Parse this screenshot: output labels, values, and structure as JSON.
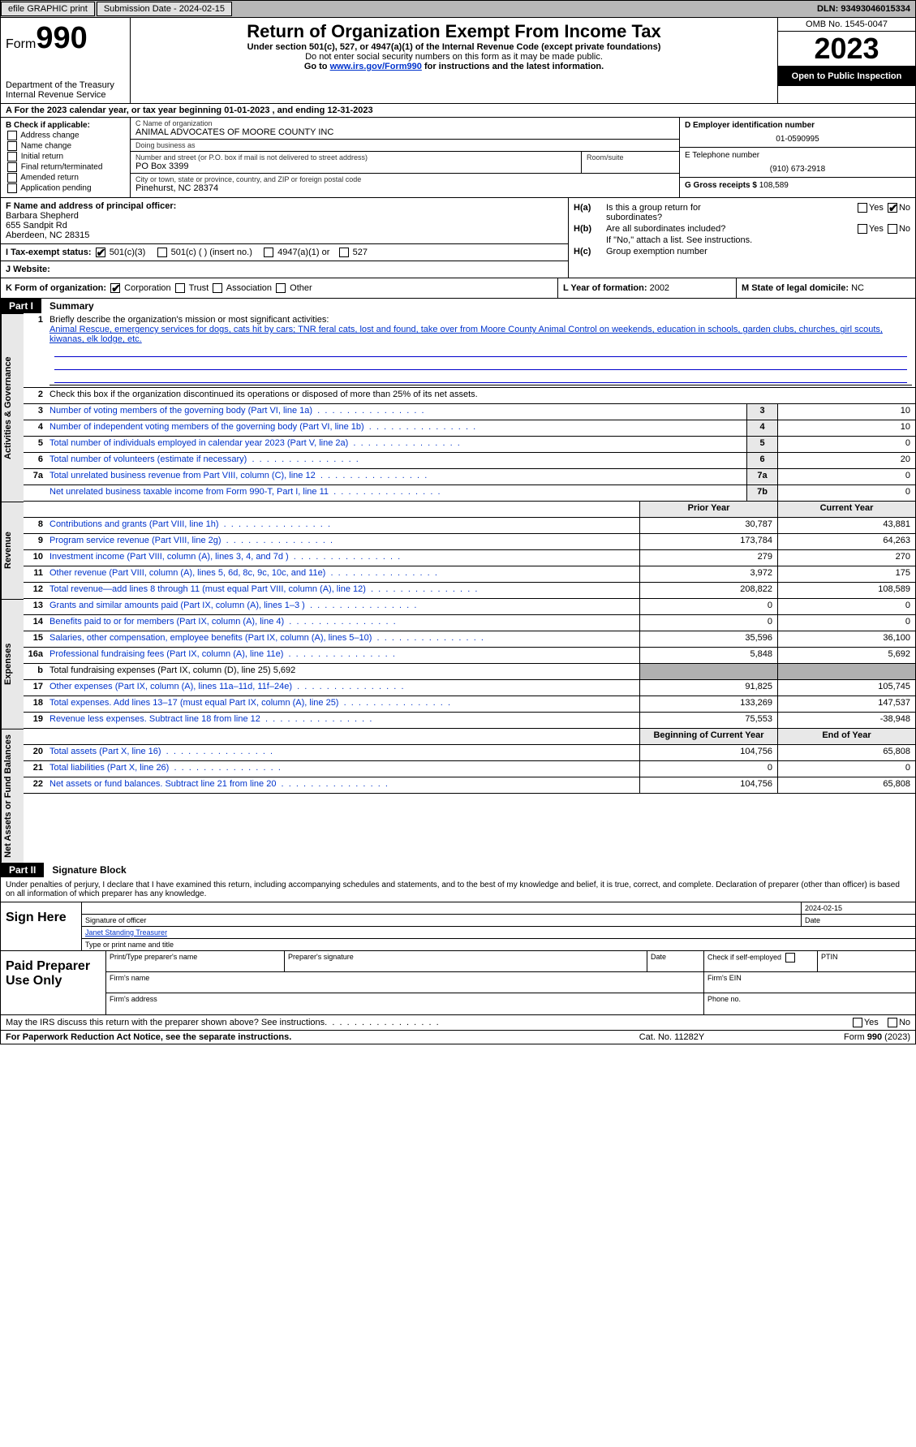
{
  "topbar": {
    "efile": "efile GRAPHIC print",
    "submission": "Submission Date - 2024-02-15",
    "dln": "DLN: 93493046015334"
  },
  "header": {
    "form_label": "Form",
    "form_num": "990",
    "dept1": "Department of the Treasury",
    "dept2": "Internal Revenue Service",
    "title": "Return of Organization Exempt From Income Tax",
    "sub": "Under section 501(c), 527, or 4947(a)(1) of the Internal Revenue Code (except private foundations)",
    "note": "Do not enter social security numbers on this form as it may be made public.",
    "goto_pre": "Go to ",
    "goto_link": "www.irs.gov/Form990",
    "goto_post": " for instructions and the latest information.",
    "omb": "OMB No. 1545-0047",
    "year": "2023",
    "open": "Open to Public Inspection"
  },
  "rowA": {
    "text": "A  For the 2023 calendar year, or tax year beginning 01-01-2023    , and ending 12-31-2023"
  },
  "boxB": {
    "label": "B Check if applicable:",
    "opts": [
      "Address change",
      "Name change",
      "Initial return",
      "Final return/terminated",
      "Amended return",
      "Application pending"
    ]
  },
  "boxC": {
    "name_lbl": "C Name of organization",
    "name": "ANIMAL ADVOCATES OF MOORE COUNTY INC",
    "dba_lbl": "Doing business as",
    "dba": "",
    "street_lbl": "Number and street (or P.O. box if mail is not delivered to street address)",
    "street": "PO Box 3399",
    "room_lbl": "Room/suite",
    "room": "",
    "city_lbl": "City or town, state or province, country, and ZIP or foreign postal code",
    "city": "Pinehurst, NC  28374"
  },
  "boxD": {
    "ein_lbl": "D Employer identification number",
    "ein": "01-0590995",
    "phone_lbl": "E Telephone number",
    "phone": "(910) 673-2918",
    "gross_lbl": "G Gross receipts $",
    "gross": "108,589"
  },
  "boxF": {
    "lbl": "F  Name and address of principal officer:",
    "name": "Barbara Shepherd",
    "addr1": "655 Sandpit Rd",
    "addr2": "Aberdeen, NC  28315"
  },
  "boxH": {
    "ha_lbl": "Is this a group return for",
    "ha_lbl2": "subordinates?",
    "hb_lbl": "Are all subordinates included?",
    "hb_note": "If \"No,\" attach a list. See instructions.",
    "hc_lbl": "Group exemption number",
    "yes": "Yes",
    "no": "No"
  },
  "boxI": {
    "lbl": "I   Tax-exempt status:",
    "o1": "501(c)(3)",
    "o2": "501(c) (  ) (insert no.)",
    "o3": "4947(a)(1) or",
    "o4": "527"
  },
  "boxJ": {
    "lbl": "J   Website:",
    "val": ""
  },
  "boxK": {
    "lbl": "K Form of organization:",
    "o1": "Corporation",
    "o2": "Trust",
    "o3": "Association",
    "o4": "Other"
  },
  "boxL": {
    "lbl": "L Year of formation:",
    "val": "2002"
  },
  "boxM": {
    "lbl": "M State of legal domicile:",
    "val": "NC"
  },
  "parts": {
    "p1_num": "Part I",
    "p1_title": "Summary",
    "p2_num": "Part II",
    "p2_title": "Signature Block"
  },
  "vtabs": {
    "ag": "Activities & Governance",
    "rev": "Revenue",
    "exp": "Expenses",
    "net": "Net Assets or Fund Balances"
  },
  "summary": {
    "q1": "Briefly describe the organization's mission or most significant activities:",
    "mission": "Animal Rescue, emergency services for dogs, cats hit by cars; TNR feral cats, lost and found, take over from Moore County Animal Control on weekends, education in schools, garden clubs, churches, girl scouts, kiwanas, elk lodge, etc.",
    "q2": "Check this box       if the organization discontinued its operations or disposed of more than 25% of its net assets.",
    "rows_ag": [
      {
        "n": "3",
        "t": "Number of voting members of the governing body (Part VI, line 1a)",
        "box": "3",
        "v": "10"
      },
      {
        "n": "4",
        "t": "Number of independent voting members of the governing body (Part VI, line 1b)",
        "box": "4",
        "v": "10"
      },
      {
        "n": "5",
        "t": "Total number of individuals employed in calendar year 2023 (Part V, line 2a)",
        "box": "5",
        "v": "0"
      },
      {
        "n": "6",
        "t": "Total number of volunteers (estimate if necessary)",
        "box": "6",
        "v": "20"
      },
      {
        "n": "7a",
        "t": "Total unrelated business revenue from Part VIII, column (C), line 12",
        "box": "7a",
        "v": "0"
      },
      {
        "n": "",
        "t": "Net unrelated business taxable income from Form 990-T, Part I, line 11",
        "box": "7b",
        "v": "0"
      }
    ],
    "col_hdr1": "Prior Year",
    "col_hdr2": "Current Year",
    "rows_rev": [
      {
        "n": "8",
        "t": "Contributions and grants (Part VIII, line 1h)",
        "p": "30,787",
        "c": "43,881"
      },
      {
        "n": "9",
        "t": "Program service revenue (Part VIII, line 2g)",
        "p": "173,784",
        "c": "64,263"
      },
      {
        "n": "10",
        "t": "Investment income (Part VIII, column (A), lines 3, 4, and 7d )",
        "p": "279",
        "c": "270"
      },
      {
        "n": "11",
        "t": "Other revenue (Part VIII, column (A), lines 5, 6d, 8c, 9c, 10c, and 11e)",
        "p": "3,972",
        "c": "175"
      },
      {
        "n": "12",
        "t": "Total revenue—add lines 8 through 11 (must equal Part VIII, column (A), line 12)",
        "p": "208,822",
        "c": "108,589"
      }
    ],
    "rows_exp": [
      {
        "n": "13",
        "t": "Grants and similar amounts paid (Part IX, column (A), lines 1–3 )",
        "p": "0",
        "c": "0"
      },
      {
        "n": "14",
        "t": "Benefits paid to or for members (Part IX, column (A), line 4)",
        "p": "0",
        "c": "0"
      },
      {
        "n": "15",
        "t": "Salaries, other compensation, employee benefits (Part IX, column (A), lines 5–10)",
        "p": "35,596",
        "c": "36,100"
      },
      {
        "n": "16a",
        "t": "Professional fundraising fees (Part IX, column (A), line 11e)",
        "p": "5,848",
        "c": "5,692"
      },
      {
        "n": "b",
        "t": "Total fundraising expenses (Part IX, column (D), line 25) 5,692",
        "p": "",
        "c": "",
        "shaded": true,
        "black": true
      },
      {
        "n": "17",
        "t": "Other expenses (Part IX, column (A), lines 11a–11d, 11f–24e)",
        "p": "91,825",
        "c": "105,745"
      },
      {
        "n": "18",
        "t": "Total expenses. Add lines 13–17 (must equal Part IX, column (A), line 25)",
        "p": "133,269",
        "c": "147,537"
      },
      {
        "n": "19",
        "t": "Revenue less expenses. Subtract line 18 from line 12",
        "p": "75,553",
        "c": "-38,948"
      }
    ],
    "net_hdr1": "Beginning of Current Year",
    "net_hdr2": "End of Year",
    "rows_net": [
      {
        "n": "20",
        "t": "Total assets (Part X, line 16)",
        "p": "104,756",
        "c": "65,808"
      },
      {
        "n": "21",
        "t": "Total liabilities (Part X, line 26)",
        "p": "0",
        "c": "0"
      },
      {
        "n": "22",
        "t": "Net assets or fund balances. Subtract line 21 from line 20",
        "p": "104,756",
        "c": "65,808"
      }
    ]
  },
  "sigblock": {
    "decl": "Under penalties of perjury, I declare that I have examined this return, including accompanying schedules and statements, and to the best of my knowledge and belief, it is true, correct, and complete. Declaration of preparer (other than officer) is based on all information of which preparer has any knowledge.",
    "sign_here": "Sign Here",
    "sig_off": "Signature of officer",
    "date_lbl": "Date",
    "date": "2024-02-15",
    "name": "Janet Standing Treasurer",
    "name_lbl": "Type or print name and title",
    "paid": "Paid Preparer Use Only",
    "pp_name": "Print/Type preparer's name",
    "pp_sig": "Preparer's signature",
    "pp_date": "Date",
    "pp_self": "Check       if self-employed",
    "pp_ptin": "PTIN",
    "firm_name": "Firm's name",
    "firm_ein": "Firm's EIN",
    "firm_addr": "Firm's address",
    "firm_phone": "Phone no.",
    "may": "May the IRS discuss this return with the preparer shown above? See instructions.",
    "yes": "Yes",
    "no": "No"
  },
  "footer": {
    "pra": "For Paperwork Reduction Act Notice, see the separate instructions.",
    "cat": "Cat. No. 11282Y",
    "form": "Form 990 (2023)"
  }
}
